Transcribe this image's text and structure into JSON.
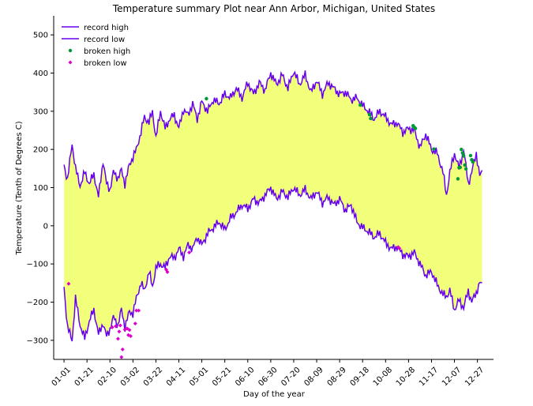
{
  "chart_data": {
    "type": "line",
    "title": "Temperature summary Plot near Ann Arbor, Michigan, United States",
    "xlabel": "Day of the year",
    "ylabel": "Temperature (Tenth of Degrees C)",
    "ylim": [
      -350,
      550
    ],
    "xlim": [
      -9,
      374
    ],
    "yticks": [
      -300,
      -200,
      -100,
      0,
      100,
      200,
      300,
      400,
      500
    ],
    "x_ticks": [
      {
        "day": 0,
        "label": "01-01"
      },
      {
        "day": 20,
        "label": "01-21"
      },
      {
        "day": 40,
        "label": "02-10"
      },
      {
        "day": 60,
        "label": "03-02"
      },
      {
        "day": 80,
        "label": "03-22"
      },
      {
        "day": 100,
        "label": "04-11"
      },
      {
        "day": 120,
        "label": "05-01"
      },
      {
        "day": 140,
        "label": "05-21"
      },
      {
        "day": 160,
        "label": "06-10"
      },
      {
        "day": 180,
        "label": "06-30"
      },
      {
        "day": 200,
        "label": "07-20"
      },
      {
        "day": 220,
        "label": "08-09"
      },
      {
        "day": 240,
        "label": "08-29"
      },
      {
        "day": 260,
        "label": "09-18"
      },
      {
        "day": 280,
        "label": "10-08"
      },
      {
        "day": 300,
        "label": "10-28"
      },
      {
        "day": 320,
        "label": "11-17"
      },
      {
        "day": 340,
        "label": "12-07"
      },
      {
        "day": 360,
        "label": "12-27"
      }
    ],
    "fill_color": "#f2ff7a",
    "series": [
      {
        "name": "record high",
        "color": "#6600ee",
        "points": [
          [
            0,
            160
          ],
          [
            3,
            120
          ],
          [
            7,
            215
          ],
          [
            10,
            150
          ],
          [
            14,
            105
          ],
          [
            18,
            140
          ],
          [
            22,
            110
          ],
          [
            26,
            135
          ],
          [
            30,
            75
          ],
          [
            34,
            170
          ],
          [
            37,
            110
          ],
          [
            40,
            95
          ],
          [
            43,
            140
          ],
          [
            47,
            125
          ],
          [
            50,
            145
          ],
          [
            53,
            110
          ],
          [
            57,
            160
          ],
          [
            60,
            180
          ],
          [
            63,
            200
          ],
          [
            67,
            245
          ],
          [
            70,
            285
          ],
          [
            74,
            270
          ],
          [
            77,
            300
          ],
          [
            80,
            230
          ],
          [
            84,
            300
          ],
          [
            88,
            255
          ],
          [
            92,
            280
          ],
          [
            96,
            290
          ],
          [
            100,
            255
          ],
          [
            104,
            305
          ],
          [
            108,
            290
          ],
          [
            112,
            320
          ],
          [
            116,
            280
          ],
          [
            120,
            325
          ],
          [
            125,
            300
          ],
          [
            130,
            330
          ],
          [
            135,
            320
          ],
          [
            140,
            345
          ],
          [
            145,
            335
          ],
          [
            150,
            360
          ],
          [
            155,
            335
          ],
          [
            160,
            375
          ],
          [
            165,
            345
          ],
          [
            170,
            375
          ],
          [
            175,
            355
          ],
          [
            180,
            400
          ],
          [
            185,
            370
          ],
          [
            190,
            395
          ],
          [
            195,
            360
          ],
          [
            200,
            405
          ],
          [
            205,
            370
          ],
          [
            210,
            395
          ],
          [
            215,
            350
          ],
          [
            220,
            380
          ],
          [
            225,
            345
          ],
          [
            230,
            375
          ],
          [
            235,
            360
          ],
          [
            240,
            345
          ],
          [
            245,
            350
          ],
          [
            250,
            330
          ],
          [
            255,
            335
          ],
          [
            260,
            315
          ],
          [
            265,
            300
          ],
          [
            270,
            280
          ],
          [
            275,
            300
          ],
          [
            280,
            285
          ],
          [
            285,
            265
          ],
          [
            290,
            270
          ],
          [
            295,
            245
          ],
          [
            300,
            255
          ],
          [
            305,
            250
          ],
          [
            310,
            205
          ],
          [
            315,
            240
          ],
          [
            320,
            200
          ],
          [
            325,
            190
          ],
          [
            330,
            140
          ],
          [
            333,
            80
          ],
          [
            336,
            140
          ],
          [
            340,
            190
          ],
          [
            344,
            150
          ],
          [
            348,
            200
          ],
          [
            352,
            110
          ],
          [
            355,
            140
          ],
          [
            359,
            190
          ],
          [
            362,
            130
          ],
          [
            364,
            140
          ]
        ]
      },
      {
        "name": "record low",
        "color": "#6600ee",
        "points": [
          [
            0,
            -160
          ],
          [
            3,
            -265
          ],
          [
            7,
            -300
          ],
          [
            10,
            -190
          ],
          [
            14,
            -260
          ],
          [
            18,
            -295
          ],
          [
            22,
            -250
          ],
          [
            26,
            -220
          ],
          [
            30,
            -285
          ],
          [
            34,
            -255
          ],
          [
            37,
            -290
          ],
          [
            40,
            -270
          ],
          [
            43,
            -240
          ],
          [
            47,
            -260
          ],
          [
            50,
            -220
          ],
          [
            53,
            -265
          ],
          [
            57,
            -225
          ],
          [
            60,
            -230
          ],
          [
            63,
            -190
          ],
          [
            67,
            -150
          ],
          [
            70,
            -170
          ],
          [
            74,
            -120
          ],
          [
            77,
            -160
          ],
          [
            80,
            -110
          ],
          [
            84,
            -100
          ],
          [
            88,
            -110
          ],
          [
            92,
            -80
          ],
          [
            96,
            -85
          ],
          [
            100,
            -60
          ],
          [
            104,
            -80
          ],
          [
            108,
            -50
          ],
          [
            112,
            -60
          ],
          [
            116,
            -30
          ],
          [
            120,
            -50
          ],
          [
            125,
            -20
          ],
          [
            130,
            -5
          ],
          [
            135,
            10
          ],
          [
            140,
            -10
          ],
          [
            145,
            20
          ],
          [
            150,
            35
          ],
          [
            155,
            55
          ],
          [
            160,
            45
          ],
          [
            165,
            70
          ],
          [
            170,
            60
          ],
          [
            175,
            80
          ],
          [
            180,
            100
          ],
          [
            185,
            70
          ],
          [
            190,
            90
          ],
          [
            195,
            75
          ],
          [
            200,
            100
          ],
          [
            205,
            80
          ],
          [
            210,
            95
          ],
          [
            215,
            70
          ],
          [
            220,
            90
          ],
          [
            225,
            60
          ],
          [
            230,
            75
          ],
          [
            235,
            55
          ],
          [
            240,
            70
          ],
          [
            245,
            40
          ],
          [
            250,
            55
          ],
          [
            255,
            10
          ],
          [
            260,
            -5
          ],
          [
            265,
            -15
          ],
          [
            270,
            -30
          ],
          [
            275,
            -20
          ],
          [
            280,
            -45
          ],
          [
            285,
            -60
          ],
          [
            290,
            -55
          ],
          [
            295,
            -75
          ],
          [
            300,
            -80
          ],
          [
            305,
            -70
          ],
          [
            310,
            -100
          ],
          [
            315,
            -130
          ],
          [
            320,
            -120
          ],
          [
            325,
            -155
          ],
          [
            330,
            -180
          ],
          [
            333,
            -185
          ],
          [
            336,
            -170
          ],
          [
            340,
            -220
          ],
          [
            344,
            -195
          ],
          [
            348,
            -215
          ],
          [
            352,
            -170
          ],
          [
            355,
            -200
          ],
          [
            359,
            -175
          ],
          [
            362,
            -150
          ],
          [
            364,
            -155
          ]
        ]
      }
    ],
    "scatter": [
      {
        "name": "broken high",
        "color": "#009933",
        "marker": "circle",
        "points": [
          [
            124,
            333
          ],
          [
            258,
            316
          ],
          [
            266,
            291
          ],
          [
            267,
            281
          ],
          [
            304,
            262
          ],
          [
            305,
            258
          ],
          [
            306,
            255
          ],
          [
            322,
            201
          ],
          [
            343,
            123
          ],
          [
            344,
            152
          ],
          [
            345,
            153
          ],
          [
            346,
            200
          ],
          [
            347,
            191
          ],
          [
            348,
            183
          ],
          [
            349,
            159
          ],
          [
            350,
            149
          ],
          [
            354,
            184
          ],
          [
            355,
            173
          ],
          [
            356,
            167
          ]
        ]
      },
      {
        "name": "broken low",
        "color": "#dd00cc",
        "marker": "diamond",
        "points": [
          [
            4,
            -152
          ],
          [
            42,
            -266
          ],
          [
            45,
            -263
          ],
          [
            47,
            -296
          ],
          [
            48,
            -277
          ],
          [
            49,
            -261
          ],
          [
            50,
            -344
          ],
          [
            51,
            -324
          ],
          [
            53,
            -272
          ],
          [
            55,
            -269
          ],
          [
            56,
            -286
          ],
          [
            57,
            -273
          ],
          [
            58,
            -289
          ],
          [
            62,
            -256
          ],
          [
            63,
            -222
          ],
          [
            65,
            -222
          ],
          [
            89,
            -115
          ],
          [
            90,
            -121
          ],
          [
            109,
            -70
          ],
          [
            291,
            -56
          ],
          [
            292,
            -59
          ]
        ]
      }
    ],
    "legend": {
      "position": "top-left",
      "entries": [
        "record high",
        "record low",
        "broken high",
        "broken low"
      ]
    },
    "grid": false
  }
}
